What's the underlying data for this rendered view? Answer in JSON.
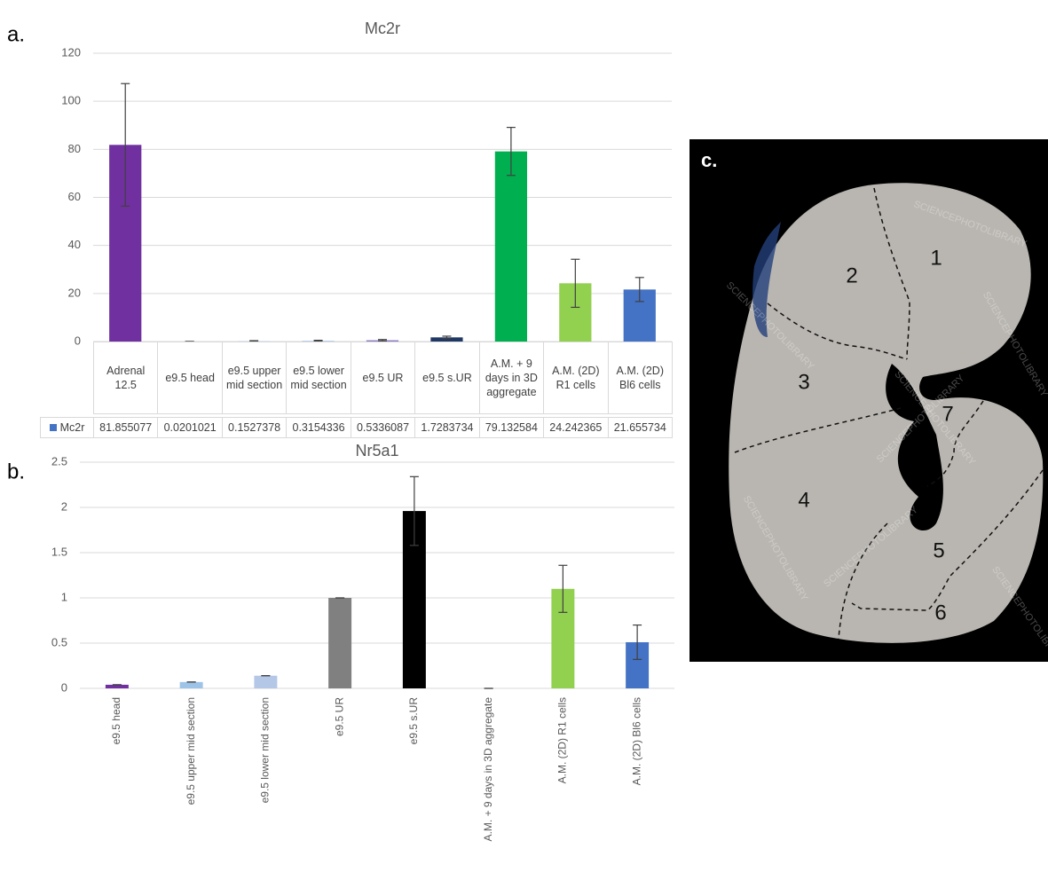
{
  "chart_data": [
    {
      "type": "bar",
      "panel_label": "a.",
      "title": "Mc2r",
      "categories": [
        "Adrenal 12.5",
        "e9.5 head",
        "e9.5 upper mid section",
        "e9.5 lower mid section",
        "e9.5 UR",
        "e9.5 s.UR",
        "A.M. + 9 days in 3D aggregate",
        "A.M. (2D) R1 cells",
        "A.M. (2D) Bl6 cells"
      ],
      "series": [
        {
          "name": "Mc2r",
          "color": "#4472c4",
          "values": [
            81.855077,
            0.0201021,
            0.1527378,
            0.3154336,
            0.5336087,
            1.7283734,
            79.132584,
            24.242365,
            21.655734
          ],
          "errors": [
            25.5,
            0,
            0.2,
            0.2,
            0.3,
            0.5,
            10,
            10,
            5
          ],
          "colors": [
            "#7030a0",
            "#d9d9d9",
            "#b4c7e7",
            "#b4c7e7",
            "#8e7cc3",
            "#1f3864",
            "#00b050",
            "#92d050",
            "#4472c4"
          ]
        }
      ],
      "ylim": [
        0,
        120
      ],
      "yticks": [
        0,
        20,
        40,
        60,
        80,
        100,
        120
      ],
      "grid": true,
      "data_table": true
    },
    {
      "type": "bar",
      "panel_label": "b.",
      "title": "Nr5a1",
      "categories": [
        "e9.5 head",
        "e9.5 upper mid section",
        "e9.5 lower mid section",
        "e9.5 UR",
        "e9.5 s.UR",
        "A.M. + 9 days in 3D aggregate",
        "A.M. (2D) R1 cells",
        "A.M. (2D) Bl6 cells"
      ],
      "series": [
        {
          "name": "Nr5a1",
          "values": [
            0.04,
            0.07,
            0.14,
            1,
            1.96,
            0,
            1.1,
            0.51
          ],
          "errors": [
            0,
            0,
            0,
            0,
            0.38,
            0,
            0.26,
            0.19
          ],
          "colors": [
            "#7030a0",
            "#9dc3e6",
            "#b4c7e7",
            "#808080",
            "#000000",
            "#ffffff",
            "#92d050",
            "#4472c4"
          ]
        }
      ],
      "ylim": [
        0,
        2.5
      ],
      "yticks": [
        0,
        0.5,
        1,
        1.5,
        2,
        2.5
      ],
      "grid": true,
      "data_table": false
    }
  ],
  "image": {
    "panel_label": "c.",
    "regions": [
      "1",
      "2",
      "3",
      "4",
      "5",
      "6",
      "7"
    ],
    "watermark": "SCIENCEPHOTOLIBRARY"
  }
}
